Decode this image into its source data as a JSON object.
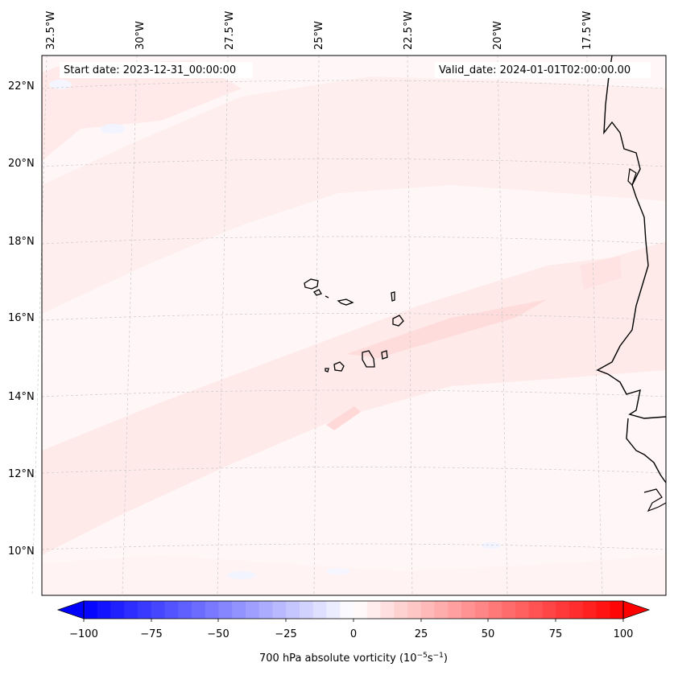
{
  "map": {
    "start_label": "Start date: 2023-12-31_00:00:00",
    "valid_label": "Valid_date: 2024-01-01T02:00:00.00",
    "lon_labels": [
      "32.5°W",
      "30°W",
      "27.5°W",
      "25°W",
      "22.5°W",
      "20°W",
      "17.5°W"
    ],
    "lat_labels": [
      "22°N",
      "20°N",
      "18°N",
      "16°N",
      "14°N",
      "12°N",
      "10°N"
    ],
    "field_colors": {
      "background": "#fff7f7",
      "weak_positive": "#ffe9e9",
      "positive": "#ffdcdc",
      "weak_negative": "#f2f4ff",
      "coastline": "#000000",
      "gridline": "#c8c8c8"
    }
  },
  "colorbar": {
    "title": "700 hPa absolute vorticity (10",
    "title_exp1": "−5",
    "title_mid": "s",
    "title_exp2": "−1",
    "title_end": ")",
    "ticks": [
      "−100",
      "−75",
      "−50",
      "−25",
      "0",
      "25",
      "50",
      "75",
      "100"
    ],
    "min_color": "#0000ff",
    "mid_color": "#ffffff",
    "max_color": "#ff0000"
  }
}
